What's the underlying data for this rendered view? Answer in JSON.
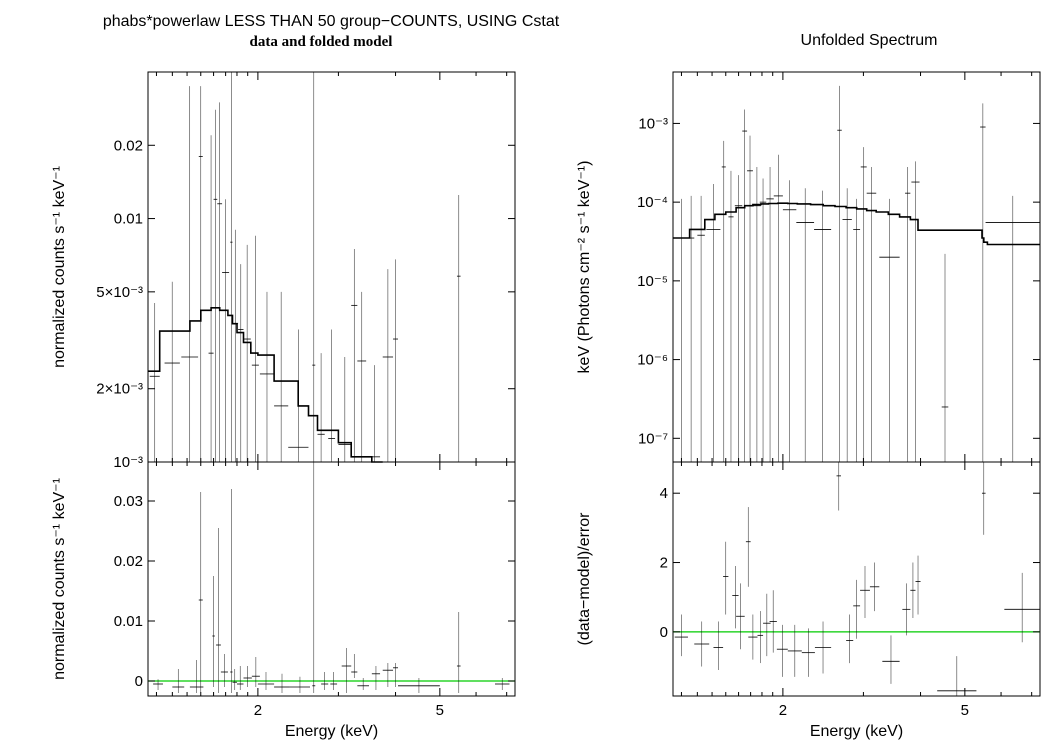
{
  "left_title": "phabs*powerlaw LESS THAN 50 group−COUNTS, USING Cstat",
  "left_subtitle": "data and folded model",
  "right_title": "Unfolded Spectrum",
  "colors": {
    "frame": "#000000",
    "data": "#000000",
    "model": "#000000",
    "zero_line": "#00cc00"
  },
  "chart_data": [
    {
      "name": "folded",
      "type": "scatter",
      "log_x": true,
      "log_y": true,
      "xlim": [
        1.15,
        7.3
      ],
      "ylim": [
        0.001,
        0.04
      ],
      "ylabel": "normalized counts s⁻¹ keV⁻¹",
      "yticks": [
        {
          "v": 0.001,
          "label": "10⁻³"
        },
        {
          "v": 0.002,
          "label": "2×10⁻³"
        },
        {
          "v": 0.005,
          "label": "5×10⁻³"
        },
        {
          "v": 0.01,
          "label": "0.01"
        },
        {
          "v": 0.02,
          "label": "0.02"
        }
      ],
      "data": [
        [
          1.16,
          1.22,
          0.00225,
          0.0001,
          0.0045
        ],
        [
          1.25,
          1.35,
          0.00255,
          0.0001,
          0.0055
        ],
        [
          1.36,
          1.48,
          0.0027,
          0.0001,
          0.035
        ],
        [
          1.485,
          1.515,
          0.018,
          0.0001,
          0.035
        ],
        [
          1.56,
          1.6,
          0.0028,
          0.0001,
          0.022
        ],
        [
          1.6,
          1.63,
          0.012,
          0.0001,
          0.028
        ],
        [
          1.63,
          1.67,
          0.0115,
          0.0001,
          0.03
        ],
        [
          1.67,
          1.73,
          0.006,
          0.0001,
          0.012
        ],
        [
          1.74,
          1.76,
          0.008,
          0.0001,
          0.04
        ],
        [
          1.76,
          1.81,
          0.0037,
          0.0001,
          0.009
        ],
        [
          1.81,
          1.86,
          0.0035,
          0.0001,
          0.0065
        ],
        [
          1.86,
          1.93,
          0.0032,
          0.0001,
          0.0078
        ],
        [
          1.94,
          2.01,
          0.0025,
          0.0001,
          0.0085
        ],
        [
          2.02,
          2.17,
          0.0023,
          0.0001,
          0.005
        ],
        [
          2.17,
          2.33,
          0.0017,
          0.0001,
          0.005
        ],
        [
          2.33,
          2.58,
          0.00115,
          0.0001,
          0.0035
        ],
        [
          2.63,
          2.67,
          0.0025,
          0.0001,
          0.04
        ],
        [
          2.7,
          2.8,
          0.0013,
          0.0001,
          0.0028
        ],
        [
          2.85,
          2.95,
          0.00125,
          0.0001,
          0.0035
        ],
        [
          3.0,
          3.2,
          0.00118,
          0.0001,
          0.0027
        ],
        [
          3.2,
          3.3,
          0.0044,
          0.0001,
          0.0075
        ],
        [
          3.3,
          3.45,
          0.0026,
          0.0001,
          0.005
        ],
        [
          3.5,
          3.7,
          0.00105,
          0.0001,
          0.0025
        ],
        [
          3.75,
          3.95,
          0.0027,
          0.0001,
          0.0062
        ],
        [
          3.95,
          4.05,
          0.0032,
          0.0001,
          0.0068
        ],
        [
          5.45,
          5.55,
          0.0058,
          0.0001,
          0.0125
        ]
      ],
      "model": {
        "edges": [
          1.15,
          1.22,
          1.35,
          1.42,
          1.5,
          1.58,
          1.65,
          1.72,
          1.76,
          1.8,
          1.86,
          1.93,
          2.0,
          2.17,
          2.33,
          2.45,
          2.58,
          2.7,
          2.85,
          3.0,
          3.2,
          3.35,
          3.55,
          3.75
        ],
        "values": [
          0.00236,
          0.00345,
          0.00345,
          0.0038,
          0.0042,
          0.0043,
          0.0042,
          0.004,
          0.0037,
          0.0034,
          0.0031,
          0.0028,
          0.00275,
          0.00215,
          0.00215,
          0.0017,
          0.00155,
          0.00135,
          0.00135,
          0.0012,
          0.00105,
          0.00105,
          0.00095
        ]
      }
    },
    {
      "name": "folded_residual",
      "type": "scatter",
      "log_x": true,
      "log_y": false,
      "xlim": [
        1.15,
        7.3
      ],
      "ylim": [
        -0.0025,
        0.0365
      ],
      "xlabel": "Energy (keV)",
      "ylabel": "normalized counts s⁻¹ keV⁻¹",
      "xticks": [
        {
          "v": 2,
          "label": "2"
        },
        {
          "v": 5,
          "label": "5"
        }
      ],
      "yticks": [
        {
          "v": 0,
          "label": "0"
        },
        {
          "v": 0.01,
          "label": "0.01"
        },
        {
          "v": 0.02,
          "label": "0.02"
        },
        {
          "v": 0.03,
          "label": "0.03"
        }
      ],
      "data": [
        [
          1.18,
          1.24,
          -0.0005,
          -0.0015,
          0.0003
        ],
        [
          1.3,
          1.38,
          -0.001,
          -0.002,
          0.002
        ],
        [
          1.42,
          1.52,
          -0.001,
          -0.002,
          0.0035
        ],
        [
          1.485,
          1.515,
          0.0135,
          -0.002,
          0.0315
        ],
        [
          1.59,
          1.61,
          0.0075,
          -0.001,
          0.0175
        ],
        [
          1.62,
          1.66,
          0.006,
          -0.002,
          0.0255
        ],
        [
          1.66,
          1.72,
          0.0015,
          -0.001,
          0.0045
        ],
        [
          1.74,
          1.76,
          0.0015,
          -0.002,
          0.032
        ],
        [
          1.76,
          1.8,
          -0.0002,
          -0.0015,
          0.002
        ],
        [
          1.8,
          1.86,
          -0.0005,
          -0.0015,
          0.0025
        ],
        [
          1.86,
          1.94,
          0.0005,
          -0.001,
          0.0025
        ],
        [
          1.94,
          2.02,
          0.0008,
          -0.001,
          0.004
        ],
        [
          2.0,
          2.17,
          -0.0005,
          -0.0015,
          0.0015
        ],
        [
          2.17,
          2.35,
          -0.001,
          -0.002,
          0.0012
        ],
        [
          2.35,
          2.6,
          -0.001,
          -0.002,
          0.0007
        ],
        [
          2.63,
          2.67,
          -0.0008,
          -0.002,
          0.0365
        ],
        [
          2.75,
          2.85,
          -0.0005,
          -0.0015,
          0.0015
        ],
        [
          2.88,
          2.98,
          -0.0005,
          -0.0015,
          0.0015
        ],
        [
          3.05,
          3.2,
          0.0025,
          -0.002,
          0.0055
        ],
        [
          3.2,
          3.3,
          0.0015,
          0.0005,
          0.0045
        ],
        [
          3.3,
          3.5,
          -0.0008,
          -0.0015,
          0.0005
        ],
        [
          3.55,
          3.7,
          0.0012,
          -0.0015,
          0.0025
        ],
        [
          3.75,
          3.95,
          0.0018,
          -0.001,
          0.003
        ],
        [
          3.95,
          4.05,
          0.0022,
          -0.001,
          0.003
        ],
        [
          4.05,
          5.0,
          -0.0008,
          -0.002,
          0.0005
        ],
        [
          5.45,
          5.55,
          0.0025,
          -0.002,
          0.0115
        ],
        [
          6.6,
          7.1,
          -0.0005,
          -0.0015,
          0.0005
        ]
      ]
    },
    {
      "name": "unfolded",
      "type": "scatter",
      "title": "Unfolded Spectrum",
      "log_x": true,
      "log_y": true,
      "xlim": [
        1.15,
        7.3
      ],
      "ylim": [
        5e-08,
        0.0045
      ],
      "ylabel": "keV (Photons cm⁻² s⁻¹ keV⁻¹)",
      "yticks": [
        {
          "v": 1e-07,
          "label": "10⁻⁷"
        },
        {
          "v": 1e-06,
          "label": "10⁻⁶"
        },
        {
          "v": 1e-05,
          "label": "10⁻⁵"
        },
        {
          "v": 0.0001,
          "label": "10⁻⁴"
        },
        {
          "v": 0.001,
          "label": "10⁻³"
        }
      ],
      "data": [
        [
          1.16,
          1.24,
          3.5e-05,
          1e-08,
          0.00011
        ],
        [
          1.24,
          1.28,
          3.5e-05,
          1e-08,
          0.00012
        ],
        [
          1.3,
          1.35,
          3.8e-05,
          1e-08,
          0.00012
        ],
        [
          1.36,
          1.46,
          4.5e-05,
          1e-08,
          0.00017
        ],
        [
          1.47,
          1.5,
          0.00028,
          1e-08,
          0.0006
        ],
        [
          1.52,
          1.56,
          6.5e-05,
          1e-08,
          0.00025
        ],
        [
          1.57,
          1.63,
          9e-05,
          1e-08,
          0.00022
        ],
        [
          1.63,
          1.67,
          0.0008,
          1e-08,
          0.0015
        ],
        [
          1.67,
          1.72,
          0.00025,
          1e-08,
          0.0007
        ],
        [
          1.72,
          1.79,
          9e-05,
          1e-08,
          0.00028
        ],
        [
          1.78,
          1.84,
          0.0001,
          1e-08,
          0.0002
        ],
        [
          1.84,
          1.91,
          0.00011,
          1e-08,
          0.00028
        ],
        [
          1.91,
          2.0,
          0.00012,
          1e-08,
          0.0004
        ],
        [
          2.0,
          2.14,
          8e-05,
          1e-08,
          0.00019
        ],
        [
          2.14,
          2.34,
          5.5e-05,
          1e-08,
          0.00015
        ],
        [
          2.34,
          2.55,
          4.5e-05,
          1e-08,
          0.00014
        ],
        [
          2.63,
          2.69,
          0.00082,
          1e-08,
          0.003
        ],
        [
          2.7,
          2.83,
          6e-05,
          1e-08,
          0.00015
        ],
        [
          2.85,
          2.95,
          4.5e-05,
          1e-08,
          0.00011
        ],
        [
          2.96,
          3.05,
          0.00028,
          1e-08,
          0.0005
        ],
        [
          3.05,
          3.2,
          0.00013,
          1e-08,
          0.00028
        ],
        [
          3.25,
          3.6,
          2e-05,
          1e-08,
          0.00011
        ],
        [
          3.7,
          3.8,
          0.00013,
          1e-08,
          0.00028
        ],
        [
          3.82,
          3.98,
          0.00018,
          1e-08,
          0.00033
        ],
        [
          4.45,
          4.6,
          2.5e-07,
          1e-08,
          2.2e-05
        ],
        [
          5.4,
          5.55,
          0.0009,
          1e-08,
          0.0018
        ],
        [
          5.55,
          7.3,
          5.5e-05,
          1e-08,
          0.00012
        ]
      ],
      "model": {
        "edges": [
          1.15,
          1.25,
          1.35,
          1.42,
          1.5,
          1.58,
          1.65,
          1.72,
          1.79,
          1.86,
          1.95,
          2.05,
          2.15,
          2.3,
          2.45,
          2.6,
          2.75,
          2.9,
          3.05,
          3.2,
          3.4,
          3.6,
          3.8,
          3.95,
          5.45,
          5.5,
          5.6,
          7.3
        ],
        "values": [
          3.5e-05,
          4.5e-05,
          6e-05,
          7e-05,
          7.5e-05,
          8.5e-05,
          9e-05,
          9.3e-05,
          9.5e-05,
          9.6e-05,
          9.7e-05,
          9.6e-05,
          9.5e-05,
          9.3e-05,
          9e-05,
          8.8e-05,
          8.5e-05,
          8.2e-05,
          7.8e-05,
          7.5e-05,
          7e-05,
          6.5e-05,
          6e-05,
          4.4e-05,
          3.5e-05,
          3.1e-05,
          2.9e-05
        ]
      }
    },
    {
      "name": "unfolded_residual",
      "type": "scatter",
      "log_x": true,
      "log_y": false,
      "xlim": [
        1.15,
        7.3
      ],
      "ylim": [
        -1.85,
        4.9
      ],
      "xlabel": "Energy (keV)",
      "ylabel": "(data−model)/error",
      "xticks": [
        {
          "v": 2,
          "label": "2"
        },
        {
          "v": 5,
          "label": "5"
        }
      ],
      "yticks": [
        {
          "v": 0,
          "label": "0"
        },
        {
          "v": 2,
          "label": "2"
        },
        {
          "v": 4,
          "label": "4"
        }
      ],
      "data": [
        [
          1.16,
          1.24,
          -0.15,
          -0.7,
          0.5
        ],
        [
          1.28,
          1.38,
          -0.35,
          -1.0,
          0.3
        ],
        [
          1.41,
          1.48,
          -0.45,
          -1.1,
          0.3
        ],
        [
          1.48,
          1.52,
          1.6,
          0.5,
          2.6
        ],
        [
          1.55,
          1.6,
          1.05,
          0.1,
          1.9
        ],
        [
          1.58,
          1.65,
          0.45,
          -0.5,
          1.4
        ],
        [
          1.66,
          1.7,
          2.6,
          1.3,
          3.6
        ],
        [
          1.68,
          1.76,
          -0.15,
          -0.8,
          0.5
        ],
        [
          1.76,
          1.81,
          -0.1,
          -0.9,
          0.6
        ],
        [
          1.81,
          1.88,
          0.25,
          -0.7,
          1.1
        ],
        [
          1.87,
          1.94,
          0.3,
          -0.6,
          1.2
        ],
        [
          1.94,
          2.05,
          -0.5,
          -1.3,
          0.2
        ],
        [
          2.05,
          2.2,
          -0.55,
          -1.3,
          0.2
        ],
        [
          2.2,
          2.35,
          -0.6,
          -1.3,
          0.1
        ],
        [
          2.35,
          2.55,
          -0.45,
          -1.2,
          0.3
        ],
        [
          2.62,
          2.68,
          4.5,
          3.5,
          5.0
        ],
        [
          2.75,
          2.85,
          -0.25,
          -0.9,
          0.5
        ],
        [
          2.85,
          2.95,
          0.75,
          -0.2,
          1.5
        ],
        [
          2.95,
          3.1,
          1.2,
          0.4,
          1.9
        ],
        [
          3.1,
          3.25,
          1.3,
          0.6,
          2.0
        ],
        [
          3.3,
          3.6,
          -0.85,
          -1.5,
          -0.1
        ],
        [
          3.65,
          3.8,
          0.65,
          -0.1,
          1.4
        ],
        [
          3.8,
          3.9,
          1.2,
          0.4,
          2.0
        ],
        [
          3.9,
          4.0,
          1.45,
          0.5,
          2.2
        ],
        [
          4.35,
          5.3,
          -1.7,
          -2.0,
          -0.7
        ],
        [
          5.45,
          5.55,
          4.0,
          2.8,
          5.0
        ],
        [
          6.1,
          7.3,
          0.65,
          -0.3,
          1.7
        ]
      ]
    }
  ]
}
